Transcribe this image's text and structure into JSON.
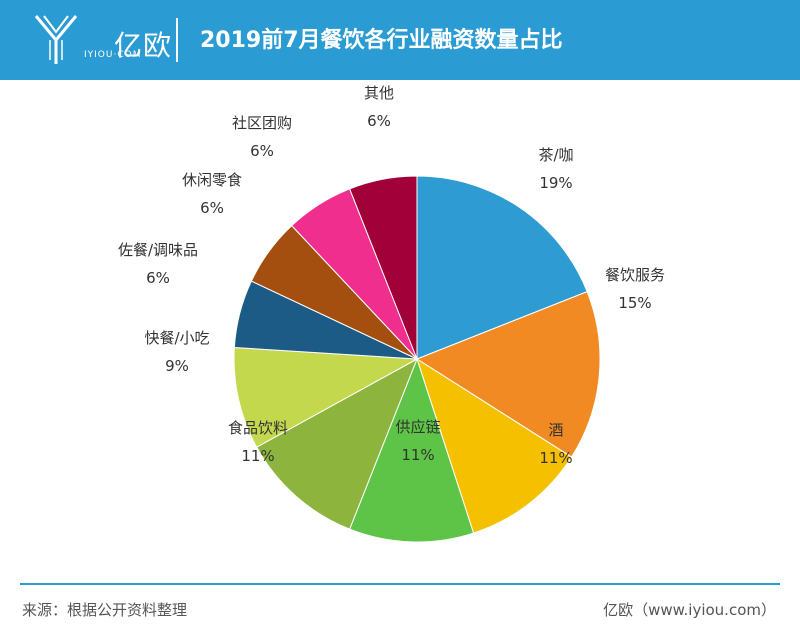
{
  "header": {
    "logo_text": "亿欧",
    "logo_sub": "IYIOU·COM",
    "title": "2019前7月餐饮各行业融资数量占比"
  },
  "chart_data": {
    "type": "pie",
    "title": "2019前7月餐饮各行业融资数量占比",
    "slices": [
      {
        "label": "茶/咖",
        "value": 19,
        "pct": "19%",
        "color": "#2e9bd3"
      },
      {
        "label": "餐饮服务",
        "value": 15,
        "pct": "15%",
        "color": "#f28a24"
      },
      {
        "label": "酒",
        "value": 11,
        "pct": "11%",
        "color": "#f5c000"
      },
      {
        "label": "供应链",
        "value": 11,
        "pct": "11%",
        "color": "#5ec447"
      },
      {
        "label": "食品饮料",
        "value": 11,
        "pct": "11%",
        "color": "#8db53e"
      },
      {
        "label": "快餐/小吃",
        "value": 9,
        "pct": "9%",
        "color": "#c4d84e"
      },
      {
        "label": "佐餐/调味品",
        "value": 6,
        "pct": "6%",
        "color": "#1b5b86"
      },
      {
        "label": "休闲零食",
        "value": 6,
        "pct": "6%",
        "color": "#a44f10"
      },
      {
        "label": "社区团购",
        "value": 6,
        "pct": "6%",
        "color": "#f02e8e"
      },
      {
        "label": "其他",
        "value": 6,
        "pct": "6%",
        "color": "#a00037"
      }
    ]
  },
  "footer": {
    "source": "来源：根据公开资料整理",
    "brand": "亿欧（www.iyiou.com）"
  }
}
